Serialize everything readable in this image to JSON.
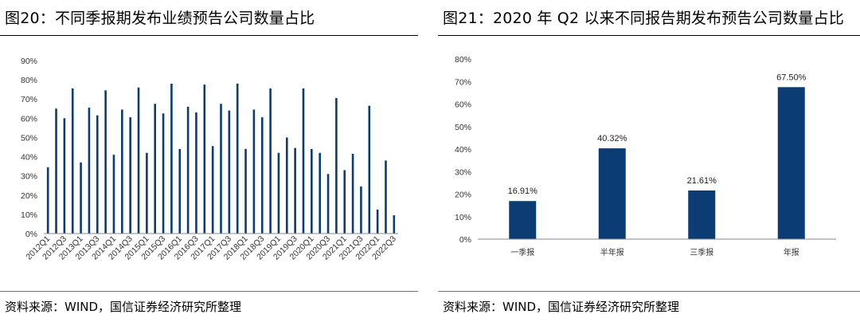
{
  "left": {
    "title": "图20：不同季报期发布业绩预告公司数量占比",
    "source": "资料来源：WIND，国信证券经济研究所整理",
    "chart_data": {
      "type": "bar",
      "color": "#0b3c73",
      "ylim": [
        0,
        0.9
      ],
      "yticks": [
        "0%",
        "10%",
        "20%",
        "30%",
        "40%",
        "50%",
        "60%",
        "70%",
        "80%",
        "90%"
      ],
      "categories": [
        "2012Q1",
        "2012Q2",
        "2012Q3",
        "2012Q4",
        "2013Q1",
        "2013Q2",
        "2013Q3",
        "2013Q4",
        "2014Q1",
        "2014Q2",
        "2014Q3",
        "2014Q4",
        "2015Q1",
        "2015Q2",
        "2015Q3",
        "2015Q4",
        "2016Q1",
        "2016Q2",
        "2016Q3",
        "2016Q4",
        "2017Q1",
        "2017Q2",
        "2017Q3",
        "2017Q4",
        "2018Q1",
        "2018Q2",
        "2018Q3",
        "2018Q4",
        "2019Q1",
        "2019Q2",
        "2019Q3",
        "2019Q4",
        "2020Q1",
        "2020Q2",
        "2020Q3",
        "2020Q4",
        "2021Q1",
        "2021Q2",
        "2021Q3",
        "2021Q4",
        "2022Q1",
        "2022Q2",
        "2022Q3"
      ],
      "tick_labels": [
        "2012Q1",
        "2012Q3",
        "2013Q1",
        "2013Q3",
        "2014Q1",
        "2014Q3",
        "2015Q1",
        "2015Q3",
        "2016Q1",
        "2016Q3",
        "2017Q1",
        "2017Q3",
        "2018Q1",
        "2018Q3",
        "2019Q1",
        "2019Q3",
        "2020Q1",
        "2020Q3",
        "2021Q1",
        "2021Q3",
        "2022Q1",
        "2022Q3"
      ],
      "values": [
        0.345,
        0.65,
        0.6,
        0.755,
        0.37,
        0.655,
        0.615,
        0.745,
        0.41,
        0.645,
        0.605,
        0.76,
        0.42,
        0.675,
        0.625,
        0.78,
        0.44,
        0.66,
        0.63,
        0.775,
        0.455,
        0.675,
        0.64,
        0.78,
        0.44,
        0.645,
        0.605,
        0.755,
        0.42,
        0.5,
        0.445,
        0.755,
        0.44,
        0.42,
        0.31,
        0.705,
        0.33,
        0.415,
        0.245,
        0.665,
        0.125,
        0.38,
        0.095
      ]
    }
  },
  "right": {
    "title": "图21：2020 年 Q2 以来不同报告期发布预告公司数量占比",
    "source": "资料来源：WIND，国信证券经济研究所整理",
    "chart_data": {
      "type": "bar",
      "color": "#0b3c73",
      "ylim": [
        0,
        0.8
      ],
      "yticks": [
        "0%",
        "10%",
        "20%",
        "30%",
        "40%",
        "50%",
        "60%",
        "70%",
        "80%"
      ],
      "categories": [
        "一季报",
        "半年报",
        "三季报",
        "年报"
      ],
      "values": [
        0.1691,
        0.4032,
        0.2161,
        0.675
      ],
      "data_labels": [
        "16.91%",
        "40.32%",
        "21.61%",
        "67.50%"
      ]
    }
  }
}
